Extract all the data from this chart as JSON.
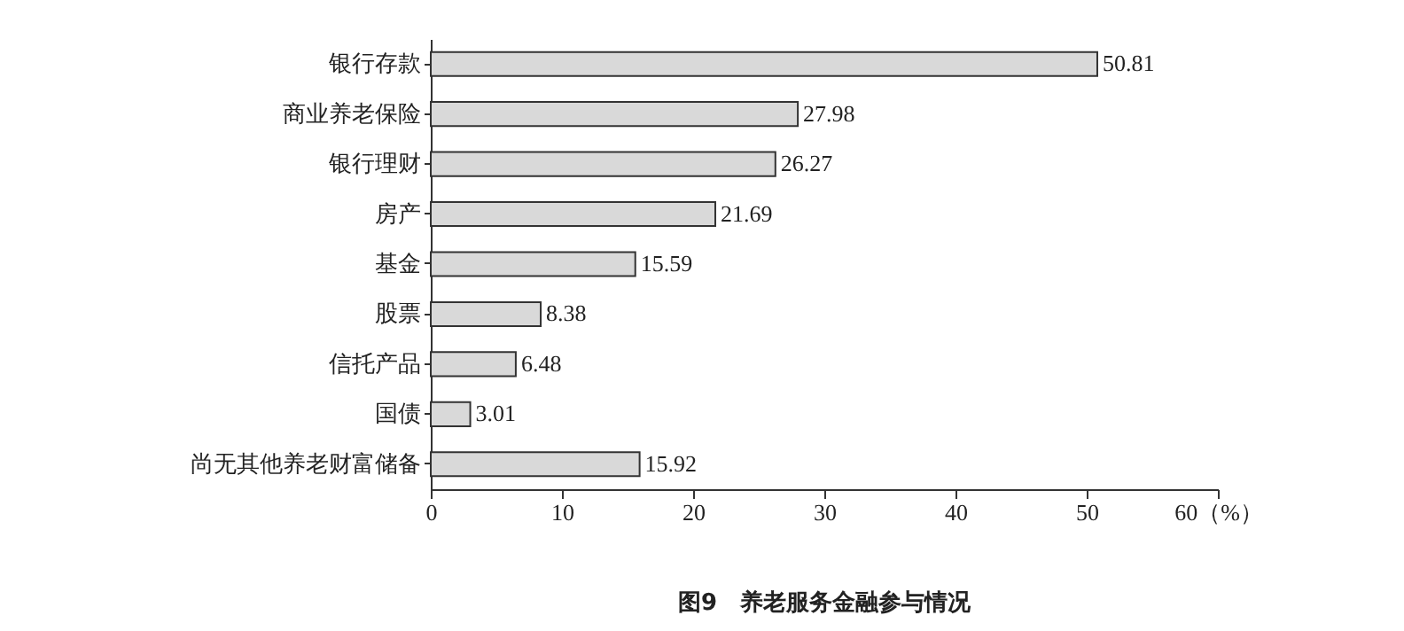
{
  "chart_data": {
    "type": "bar",
    "orientation": "horizontal",
    "title": "图9　养老服务金融参与情况",
    "categories": [
      "银行存款",
      "商业养老保险",
      "银行理财",
      "房产",
      "基金",
      "股票",
      "信托产品",
      "国债",
      "尚无其他养老财富储备"
    ],
    "values": [
      50.81,
      27.98,
      26.27,
      21.69,
      15.59,
      8.38,
      6.48,
      3.01,
      15.92
    ],
    "color": "#d9d9d9",
    "xlim": [
      0,
      60
    ],
    "xticks": [
      0,
      10,
      20,
      30,
      40,
      50,
      {
        "value": 60,
        "label": "60（%）"
      }
    ],
    "data_labels": true,
    "grid": false
  }
}
